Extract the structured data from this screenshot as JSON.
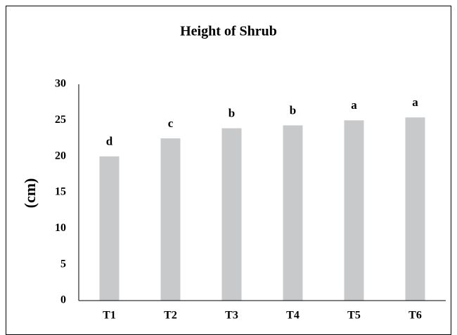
{
  "chart_data": {
    "type": "bar",
    "title": "Height of Shrub",
    "y_label": "(cm)",
    "categories": [
      "T1",
      "T2",
      "T3",
      "T4",
      "T5",
      "T6"
    ],
    "values": [
      20,
      22.5,
      23.9,
      24.3,
      25,
      25.4
    ],
    "annotations": [
      "d",
      "c",
      "b",
      "b",
      "a",
      "a"
    ],
    "color": "#c8c9cb",
    "ylim": [
      0,
      30
    ],
    "yticks": [
      0,
      5,
      10,
      15,
      20,
      25,
      30
    ],
    "grid": false
  }
}
